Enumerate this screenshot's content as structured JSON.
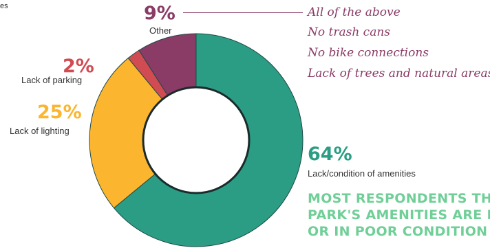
{
  "chart_data": {
    "type": "pie",
    "donut": true,
    "slices": [
      {
        "label": "Lack/condition of amenities",
        "value": 64,
        "pct_label": "64%",
        "color": "#2a9d84"
      },
      {
        "label": "Lack of lighting",
        "value": 25,
        "pct_label": "25%",
        "color": "#fbb52f"
      },
      {
        "label": "Lack of parking",
        "value": 2,
        "pct_label": "2%",
        "color": "#d14b52"
      },
      {
        "label": "Other",
        "value": 9,
        "pct_label": "9%",
        "color": "#8a3b66"
      }
    ],
    "other_breakdown": [
      "All of the above",
      "No trash cans",
      "No bike connections",
      "Lack of trees and natural areas"
    ],
    "callout_lines": [
      "MOST RESPONDENTS TH",
      "PARK'S AMENITIES ARE L",
      "OR IN POOR CONDITION"
    ],
    "cropped_top_left_text": "es"
  }
}
